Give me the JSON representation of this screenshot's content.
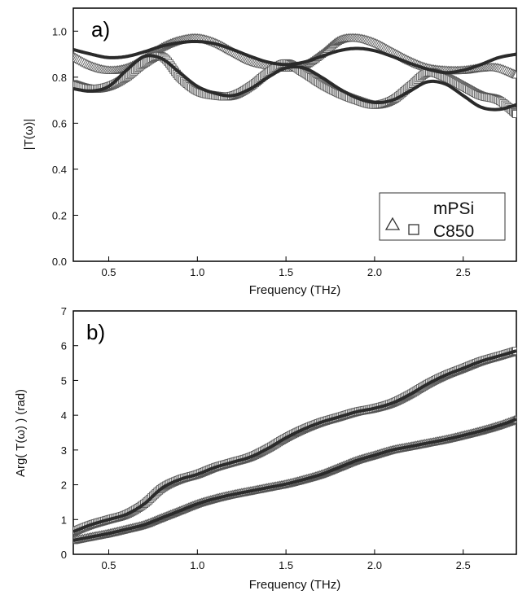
{
  "chart_data": [
    {
      "type": "line",
      "panel_label": "a)",
      "xlabel": "Frequency (THz)",
      "ylabel": "|T(ω)|",
      "xlim": [
        0.3,
        2.8
      ],
      "ylim": [
        0.0,
        1.1
      ],
      "xticks": [
        0.5,
        1.0,
        1.5,
        2.0,
        2.5
      ],
      "xtick_labels": [
        "0.5",
        "1.0",
        "1.5",
        "2.0",
        "2.5"
      ],
      "yticks": [
        0.0,
        0.2,
        0.4,
        0.6,
        0.8,
        1.0
      ],
      "ytick_labels": [
        "0.0",
        "0.2",
        "0.4",
        "0.6",
        "0.8",
        "1.0"
      ],
      "legend": {
        "position": "bottom-right",
        "entries": [
          {
            "name": "mPSi",
            "marker": "triangle"
          },
          {
            "name": "C850",
            "marker": "square"
          }
        ]
      },
      "series": [
        {
          "name": "mPSi",
          "marker": "triangle",
          "x": [
            0.3,
            0.4,
            0.5,
            0.6,
            0.7,
            0.8,
            0.9,
            1.0,
            1.1,
            1.2,
            1.3,
            1.4,
            1.5,
            1.6,
            1.7,
            1.8,
            1.9,
            2.0,
            2.1,
            2.2,
            2.3,
            2.4,
            2.5,
            2.6,
            2.7,
            2.8
          ],
          "y": [
            0.89,
            0.85,
            0.83,
            0.84,
            0.88,
            0.93,
            0.96,
            0.97,
            0.95,
            0.91,
            0.87,
            0.85,
            0.84,
            0.85,
            0.9,
            0.96,
            0.97,
            0.95,
            0.91,
            0.87,
            0.84,
            0.83,
            0.83,
            0.84,
            0.84,
            0.81
          ]
        },
        {
          "name": "mPSi fit",
          "line": true,
          "x": [
            0.3,
            0.4,
            0.5,
            0.6,
            0.7,
            0.8,
            0.9,
            1.0,
            1.1,
            1.2,
            1.3,
            1.4,
            1.5,
            1.6,
            1.7,
            1.8,
            1.9,
            2.0,
            2.1,
            2.2,
            2.3,
            2.4,
            2.5,
            2.6,
            2.7,
            2.8
          ],
          "y": [
            0.92,
            0.9,
            0.885,
            0.89,
            0.91,
            0.935,
            0.95,
            0.955,
            0.945,
            0.92,
            0.89,
            0.865,
            0.855,
            0.865,
            0.89,
            0.915,
            0.925,
            0.915,
            0.89,
            0.86,
            0.835,
            0.82,
            0.83,
            0.855,
            0.885,
            0.9
          ]
        },
        {
          "name": "C850",
          "marker": "square",
          "x": [
            0.3,
            0.4,
            0.5,
            0.6,
            0.7,
            0.8,
            0.9,
            1.0,
            1.1,
            1.2,
            1.3,
            1.4,
            1.5,
            1.6,
            1.7,
            1.8,
            1.9,
            2.0,
            2.1,
            2.2,
            2.3,
            2.4,
            2.5,
            2.6,
            2.7,
            2.8
          ],
          "y": [
            0.77,
            0.75,
            0.76,
            0.8,
            0.86,
            0.89,
            0.8,
            0.74,
            0.72,
            0.72,
            0.76,
            0.82,
            0.86,
            0.82,
            0.77,
            0.73,
            0.7,
            0.68,
            0.7,
            0.76,
            0.82,
            0.8,
            0.76,
            0.72,
            0.7,
            0.64
          ]
        },
        {
          "name": "C850 fit",
          "line": true,
          "x": [
            0.3,
            0.4,
            0.5,
            0.6,
            0.7,
            0.8,
            0.9,
            1.0,
            1.1,
            1.2,
            1.3,
            1.4,
            1.5,
            1.6,
            1.7,
            1.8,
            1.9,
            2.0,
            2.1,
            2.2,
            2.3,
            2.4,
            2.5,
            2.6,
            2.7,
            2.8
          ],
          "y": [
            0.75,
            0.74,
            0.76,
            0.83,
            0.89,
            0.88,
            0.82,
            0.76,
            0.73,
            0.72,
            0.75,
            0.8,
            0.84,
            0.84,
            0.8,
            0.75,
            0.71,
            0.69,
            0.7,
            0.74,
            0.78,
            0.77,
            0.72,
            0.67,
            0.66,
            0.68
          ]
        }
      ]
    },
    {
      "type": "line",
      "panel_label": "b)",
      "xlabel": "Frequency (THz)",
      "ylabel": "Arg( T(ω) ) (rad)",
      "xlim": [
        0.3,
        2.8
      ],
      "ylim": [
        0,
        7
      ],
      "xticks": [
        0.5,
        1.0,
        1.5,
        2.0,
        2.5
      ],
      "xtick_labels": [
        "0.5",
        "1.0",
        "1.5",
        "2.0",
        "2.5"
      ],
      "yticks": [
        0,
        1,
        2,
        3,
        4,
        5,
        6,
        7
      ],
      "ytick_labels": [
        "0",
        "1",
        "2",
        "3",
        "4",
        "5",
        "6",
        "7"
      ],
      "series": [
        {
          "name": "C850",
          "marker": "square",
          "x": [
            0.3,
            0.4,
            0.5,
            0.6,
            0.7,
            0.8,
            0.9,
            1.0,
            1.1,
            1.2,
            1.3,
            1.4,
            1.5,
            1.6,
            1.7,
            1.8,
            1.9,
            2.0,
            2.1,
            2.2,
            2.3,
            2.4,
            2.5,
            2.6,
            2.7,
            2.8
          ],
          "y": [
            0.65,
            0.85,
            1.0,
            1.15,
            1.45,
            1.9,
            2.15,
            2.3,
            2.5,
            2.65,
            2.8,
            3.05,
            3.35,
            3.6,
            3.8,
            3.95,
            4.1,
            4.2,
            4.35,
            4.6,
            4.9,
            5.15,
            5.35,
            5.55,
            5.7,
            5.85
          ]
        },
        {
          "name": "C850 fit",
          "line": true,
          "x": [
            0.3,
            0.4,
            0.5,
            0.6,
            0.7,
            0.8,
            0.9,
            1.0,
            1.1,
            1.2,
            1.3,
            1.4,
            1.5,
            1.6,
            1.7,
            1.8,
            1.9,
            2.0,
            2.1,
            2.2,
            2.3,
            2.4,
            2.5,
            2.6,
            2.7,
            2.8
          ],
          "y": [
            0.65,
            0.85,
            1.0,
            1.15,
            1.45,
            1.9,
            2.15,
            2.3,
            2.5,
            2.65,
            2.8,
            3.05,
            3.35,
            3.6,
            3.8,
            3.95,
            4.1,
            4.2,
            4.35,
            4.6,
            4.9,
            5.15,
            5.35,
            5.55,
            5.7,
            5.85
          ]
        },
        {
          "name": "mPSi",
          "marker": "triangle",
          "x": [
            0.3,
            0.4,
            0.5,
            0.6,
            0.7,
            0.8,
            0.9,
            1.0,
            1.1,
            1.2,
            1.3,
            1.4,
            1.5,
            1.6,
            1.7,
            1.8,
            1.9,
            2.0,
            2.1,
            2.2,
            2.3,
            2.4,
            2.5,
            2.6,
            2.7,
            2.8
          ],
          "y": [
            0.4,
            0.5,
            0.6,
            0.72,
            0.85,
            1.05,
            1.25,
            1.45,
            1.6,
            1.72,
            1.82,
            1.92,
            2.02,
            2.15,
            2.3,
            2.5,
            2.7,
            2.85,
            3.0,
            3.1,
            3.2,
            3.3,
            3.42,
            3.55,
            3.7,
            3.88
          ]
        },
        {
          "name": "mPSi fit",
          "line": true,
          "x": [
            0.3,
            0.4,
            0.5,
            0.6,
            0.7,
            0.8,
            0.9,
            1.0,
            1.1,
            1.2,
            1.3,
            1.4,
            1.5,
            1.6,
            1.7,
            1.8,
            1.9,
            2.0,
            2.1,
            2.2,
            2.3,
            2.4,
            2.5,
            2.6,
            2.7,
            2.8
          ],
          "y": [
            0.4,
            0.5,
            0.6,
            0.72,
            0.85,
            1.05,
            1.25,
            1.45,
            1.6,
            1.72,
            1.82,
            1.92,
            2.02,
            2.15,
            2.3,
            2.5,
            2.7,
            2.85,
            3.0,
            3.1,
            3.2,
            3.3,
            3.42,
            3.55,
            3.7,
            3.88
          ]
        }
      ]
    }
  ]
}
